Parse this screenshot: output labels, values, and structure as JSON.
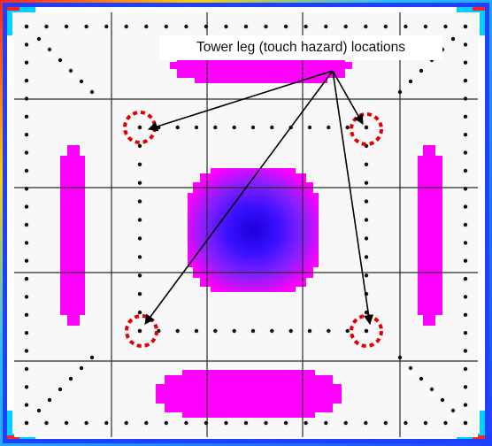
{
  "annotation": {
    "label": "Tower leg (touch hazard) locations"
  },
  "colors": {
    "low_field": "#f8f8f8",
    "mid_field": "#ff00ff",
    "high_field": "#3a10ff",
    "peak_field": "#1a00d8",
    "grid": "#2a2a2a",
    "marker": "#111111",
    "hazard_circle": "#e00000",
    "arrow": "#000000",
    "frame_outer": "#2040ff"
  },
  "icons": [
    "hazard-circle-icon",
    "arrow-icon",
    "measurement-point-icon"
  ]
}
